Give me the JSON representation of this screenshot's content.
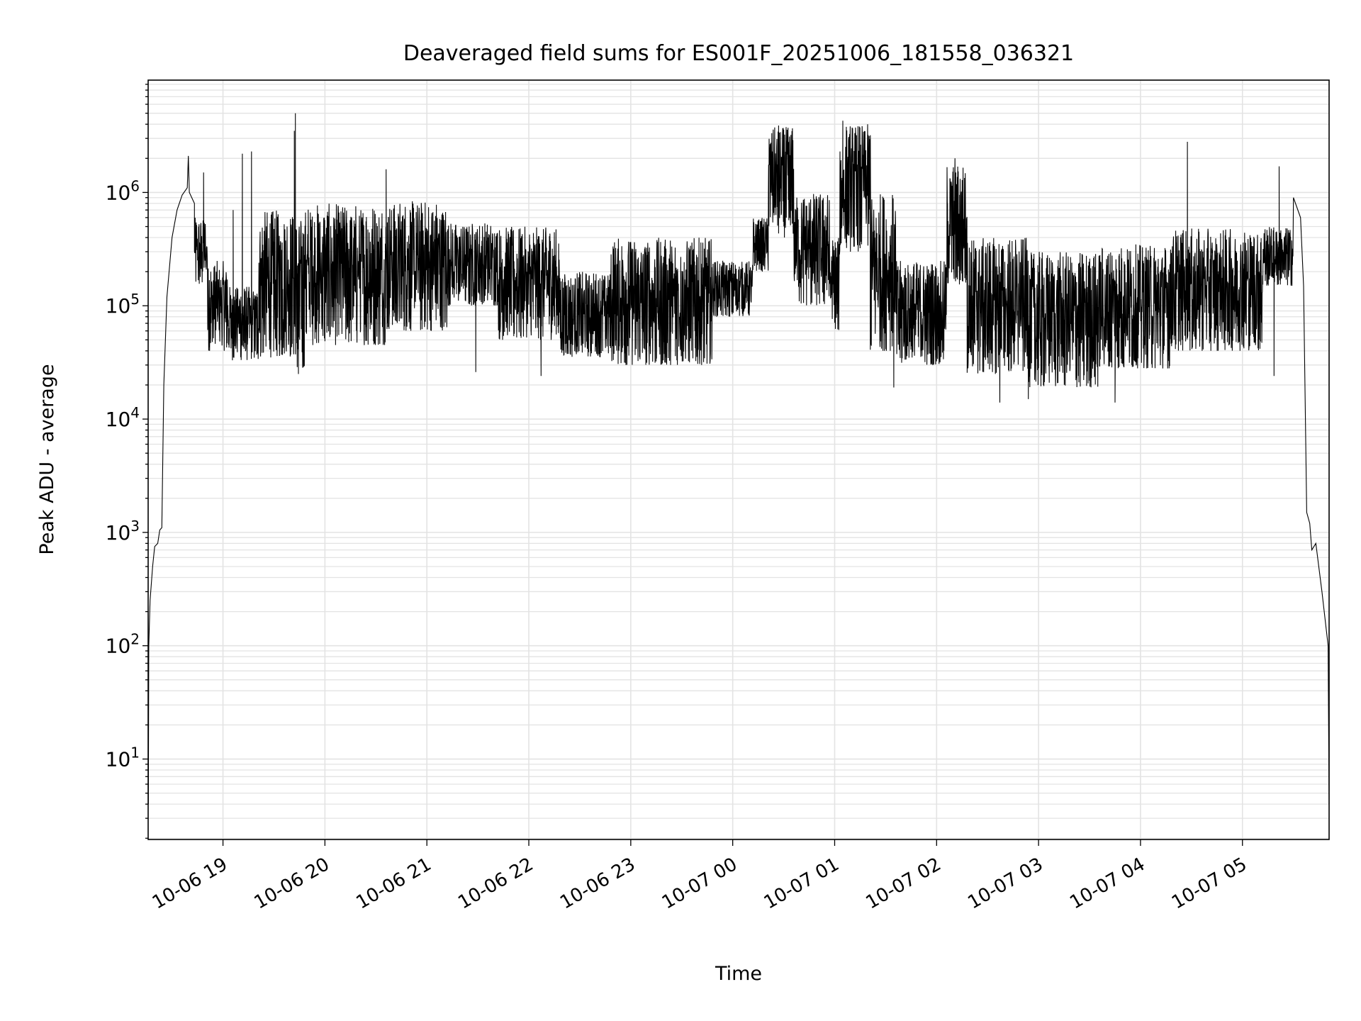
{
  "chart_data": {
    "type": "line",
    "title": "Deaveraged field sums for ES001F_20251006_181558_036321",
    "xlabel": "Time",
    "ylabel": "Peak ADU - average",
    "yscale": "log",
    "ylim": [
      1.95,
      9800000.0
    ],
    "xlim_hours": [
      18.266,
      29.85
    ],
    "x_unit": "hours since 2025-10-06 00:00",
    "grid": true,
    "line_color": "#000000",
    "grid_color": "#e3e3e3",
    "x_ticks": [
      {
        "t": 19,
        "label": "10-06 19"
      },
      {
        "t": 20,
        "label": "10-06 20"
      },
      {
        "t": 21,
        "label": "10-06 21"
      },
      {
        "t": 22,
        "label": "10-06 22"
      },
      {
        "t": 23,
        "label": "10-06 23"
      },
      {
        "t": 24,
        "label": "10-07 00"
      },
      {
        "t": 25,
        "label": "10-07 01"
      },
      {
        "t": 26,
        "label": "10-07 02"
      },
      {
        "t": 27,
        "label": "10-07 03"
      },
      {
        "t": 28,
        "label": "10-07 04"
      },
      {
        "t": 29,
        "label": "10-07 05"
      }
    ],
    "y_ticks": [
      {
        "exp": 1,
        "base": "10",
        "sup": "1"
      },
      {
        "exp": 2,
        "base": "10",
        "sup": "2"
      },
      {
        "exp": 3,
        "base": "10",
        "sup": "3"
      },
      {
        "exp": 4,
        "base": "10",
        "sup": "4"
      },
      {
        "exp": 5,
        "base": "10",
        "sup": "5"
      },
      {
        "exp": 6,
        "base": "10",
        "sup": "6"
      }
    ],
    "series": [
      {
        "name": "Peak ADU - average",
        "smooth_points": [
          [
            18.268,
            4
          ],
          [
            18.272,
            100
          ],
          [
            18.285,
            250
          ],
          [
            18.31,
            500
          ],
          [
            18.33,
            750
          ],
          [
            18.36,
            800
          ],
          [
            18.38,
            1050
          ],
          [
            18.4,
            1100
          ],
          [
            18.42,
            20000.0
          ],
          [
            18.45,
            120000.0
          ],
          [
            18.5,
            400000.0
          ],
          [
            18.55,
            700000.0
          ],
          [
            18.6,
            950000.0
          ],
          [
            18.65,
            1100000.0
          ],
          [
            18.66,
            2100000.0
          ],
          [
            18.67,
            1000000.0
          ],
          [
            18.72,
            800000.0
          ],
          [
            29.5,
            900000.0
          ],
          [
            29.57,
            600000.0
          ],
          [
            29.6,
            150000.0
          ],
          [
            29.63,
            1500.0
          ],
          [
            29.66,
            1200.0
          ],
          [
            29.68,
            700
          ],
          [
            29.72,
            800
          ],
          [
            29.78,
            300
          ],
          [
            29.84,
            100
          ],
          [
            29.85,
            4
          ]
        ],
        "noisy_segments": [
          {
            "t0": 18.72,
            "t1": 18.85,
            "lo": 150000.0,
            "hi": 600000.0
          },
          {
            "t0": 18.85,
            "t1": 19.05,
            "lo": 40000.0,
            "hi": 250000.0
          },
          {
            "t0": 19.05,
            "t1": 19.35,
            "lo": 33000.0,
            "hi": 150000.0
          },
          {
            "t0": 19.35,
            "t1": 19.7,
            "lo": 35000.0,
            "hi": 700000.0
          },
          {
            "t0": 19.7,
            "t1": 19.8,
            "lo": 25000.0,
            "hi": 600000.0
          },
          {
            "t0": 19.8,
            "t1": 20.6,
            "lo": 45000.0,
            "hi": 800000.0
          },
          {
            "t0": 20.6,
            "t1": 21.2,
            "lo": 60000.0,
            "hi": 850000.0
          },
          {
            "t0": 21.2,
            "t1": 21.7,
            "lo": 100000.0,
            "hi": 550000.0
          },
          {
            "t0": 21.7,
            "t1": 22.3,
            "lo": 50000.0,
            "hi": 500000.0
          },
          {
            "t0": 22.3,
            "t1": 22.8,
            "lo": 35000.0,
            "hi": 200000.0
          },
          {
            "t0": 22.8,
            "t1": 23.8,
            "lo": 30000.0,
            "hi": 400000.0
          },
          {
            "t0": 23.8,
            "t1": 24.2,
            "lo": 80000.0,
            "hi": 250000.0
          },
          {
            "t0": 24.2,
            "t1": 24.35,
            "lo": 200000.0,
            "hi": 600000.0
          },
          {
            "t0": 24.35,
            "t1": 24.6,
            "lo": 400000.0,
            "hi": 3800000.0
          },
          {
            "t0": 24.6,
            "t1": 24.95,
            "lo": 100000.0,
            "hi": 1000000.0
          },
          {
            "t0": 24.95,
            "t1": 25.05,
            "lo": 60000.0,
            "hi": 400000.0
          },
          {
            "t0": 25.05,
            "t1": 25.35,
            "lo": 300000.0,
            "hi": 4000000.0
          },
          {
            "t0": 25.35,
            "t1": 25.6,
            "lo": 40000.0,
            "hi": 1000000.0
          },
          {
            "t0": 25.6,
            "t1": 26.1,
            "lo": 30000.0,
            "hi": 250000.0
          },
          {
            "t0": 26.1,
            "t1": 26.3,
            "lo": 150000.0,
            "hi": 1800000.0
          },
          {
            "t0": 26.3,
            "t1": 26.9,
            "lo": 25000.0,
            "hi": 400000.0
          },
          {
            "t0": 26.9,
            "t1": 27.6,
            "lo": 19000.0,
            "hi": 300000.0
          },
          {
            "t0": 27.6,
            "t1": 28.3,
            "lo": 28000.0,
            "hi": 350000.0
          },
          {
            "t0": 28.3,
            "t1": 29.2,
            "lo": 40000.0,
            "hi": 480000.0
          },
          {
            "t0": 29.2,
            "t1": 29.5,
            "lo": 150000.0,
            "hi": 500000.0
          }
        ],
        "spikes": [
          [
            18.81,
            1500000.0
          ],
          [
            19.1,
            700000.0
          ],
          [
            19.19,
            2200000.0
          ],
          [
            19.28,
            2300000.0
          ],
          [
            19.7,
            3500000.0
          ],
          [
            19.71,
            5000000.0
          ],
          [
            19.74,
            25000.0
          ],
          [
            20.6,
            1600000.0
          ],
          [
            21.48,
            26000.0
          ],
          [
            22.12,
            24000.0
          ],
          [
            24.45,
            3900000.0
          ],
          [
            25.08,
            4300000.0
          ],
          [
            25.35,
            3200000.0
          ],
          [
            25.58,
            19000.0
          ],
          [
            26.18,
            2000000.0
          ],
          [
            26.62,
            14000.0
          ],
          [
            26.9,
            15000.0
          ],
          [
            27.75,
            14000.0
          ],
          [
            28.46,
            2800000.0
          ],
          [
            29.36,
            1700000.0
          ],
          [
            29.31,
            24000.0
          ]
        ]
      }
    ]
  }
}
